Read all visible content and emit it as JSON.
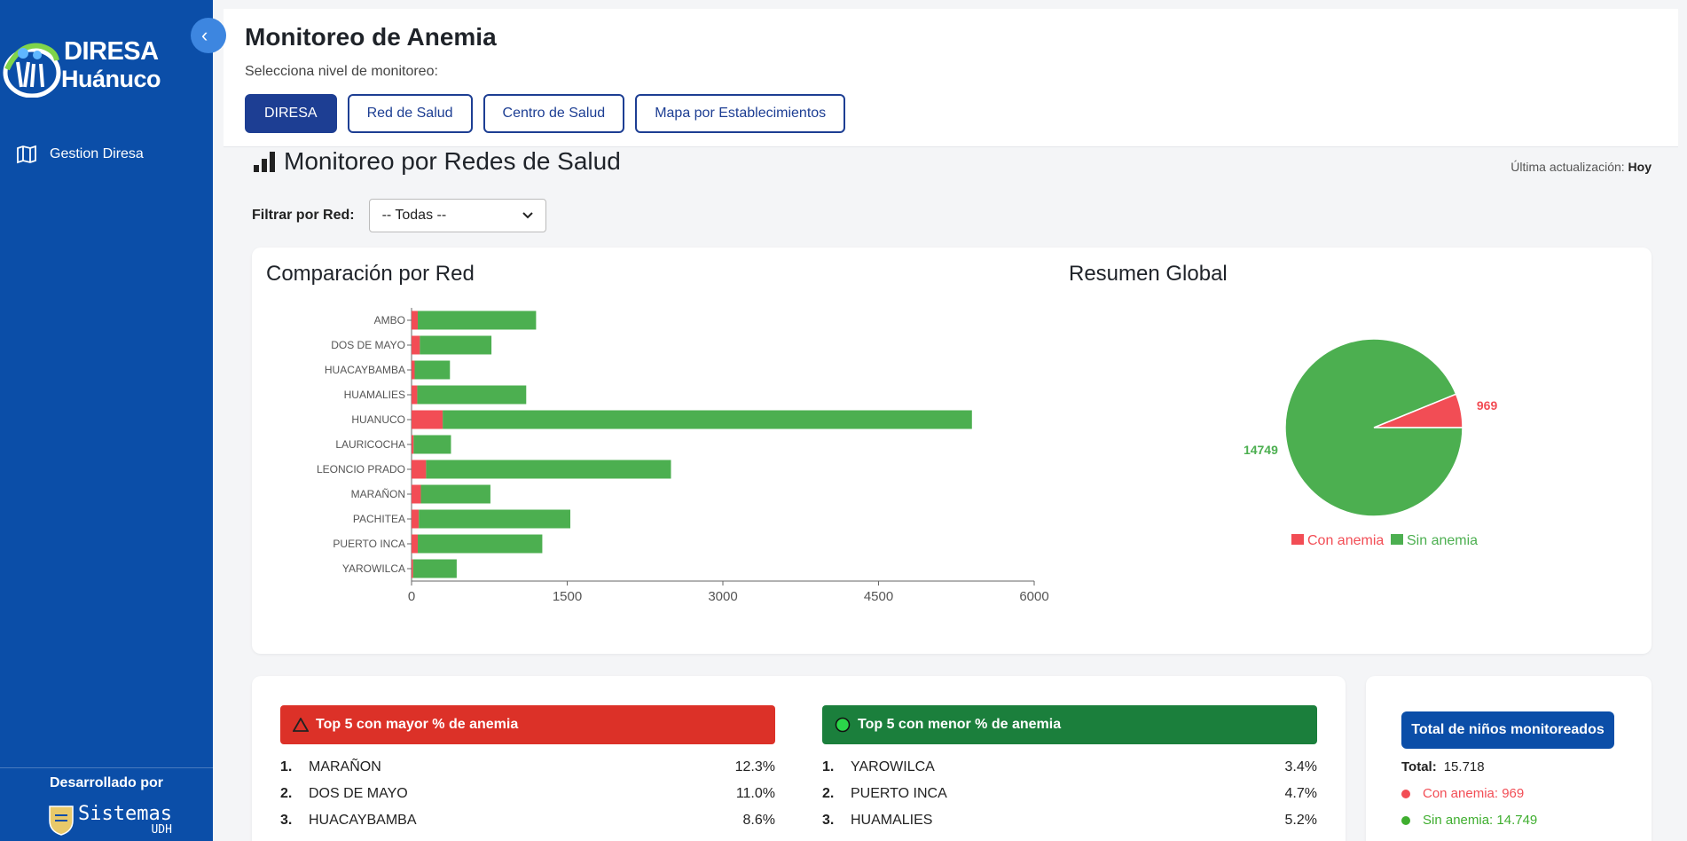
{
  "sidebar": {
    "logo_line1": "DIRESA",
    "logo_line2": "Huánuco",
    "nav_item": "Gestion Diresa",
    "developed_by": "Desarrollado por",
    "sistemas": "Sistemas",
    "sistemas_sub": "UDH"
  },
  "header": {
    "title": "Monitoreo de Anemia",
    "subtitle": "Selecciona nivel de monitoreo:",
    "buttons": [
      "DIRESA",
      "Red de Salud",
      "Centro de Salud",
      "Mapa por Establecimientos"
    ]
  },
  "section": {
    "title": "Monitoreo por Redes de Salud",
    "updated_label": "Última actualización:",
    "updated_value": "Hoy",
    "filter_label": "Filtrar por Red:",
    "filter_value": "-- Todas --"
  },
  "colors": {
    "anemia": "#f24d55",
    "sin_anemia": "#4caf50",
    "primary": "#1d3e93"
  },
  "chart_data": [
    {
      "type": "bar",
      "orientation": "horizontal",
      "stacked": true,
      "title": "Comparación por Red",
      "categories": [
        "AMBO",
        "DOS DE MAYO",
        "HUACAYBAMBA",
        "HUAMALIES",
        "HUANUCO",
        "LAURICOCHA",
        "LEONCIO PRADO",
        "MARAÑON",
        "PACHITEA",
        "PUERTO INCA",
        "YAROWILCA"
      ],
      "series": [
        {
          "name": "Con anemia",
          "values": [
            60,
            80,
            30,
            55,
            300,
            20,
            140,
            90,
            70,
            60,
            15
          ]
        },
        {
          "name": "Sin anemia",
          "values": [
            1140,
            690,
            340,
            1050,
            5100,
            360,
            2360,
            670,
            1460,
            1200,
            420
          ]
        }
      ],
      "xlim": [
        0,
        6000
      ],
      "xticks": [
        "0",
        "1500",
        "3000",
        "4500",
        "6000"
      ]
    },
    {
      "type": "pie",
      "title": "Resumen Global",
      "labels": [
        "Con anemia",
        "Sin anemia"
      ],
      "values": [
        969,
        14749
      ],
      "legend": "bottom"
    }
  ],
  "top_high": {
    "title": "Top 5 con mayor % de anemia",
    "items": [
      {
        "rank": "1.",
        "name": "MARAÑON",
        "value": "12.3%"
      },
      {
        "rank": "2.",
        "name": "DOS DE MAYO",
        "value": "11.0%"
      },
      {
        "rank": "3.",
        "name": "HUACAYBAMBA",
        "value": "8.6%"
      }
    ]
  },
  "top_low": {
    "title": "Top 5 con menor % de anemia",
    "items": [
      {
        "rank": "1.",
        "name": "YAROWILCA",
        "value": "3.4%"
      },
      {
        "rank": "2.",
        "name": "PUERTO INCA",
        "value": "4.7%"
      },
      {
        "rank": "3.",
        "name": "HUAMALIES",
        "value": "5.2%"
      }
    ]
  },
  "totals": {
    "title": "Total de niños monitoreados",
    "total_label": "Total:",
    "total_value": "15.718",
    "anemia_text": "Con anemia: 969",
    "sin_anemia_text": "Sin anemia: 14.749"
  }
}
